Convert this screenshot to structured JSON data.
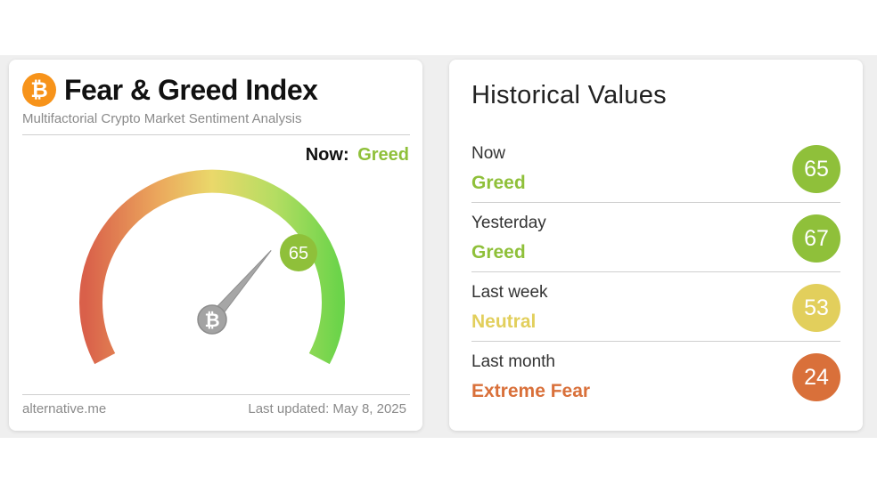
{
  "fg_card": {
    "logo_glyph": "₿",
    "title": "Fear & Greed Index",
    "subtitle": "Multifactorial Crypto Market Sentiment Analysis",
    "now_label": "Now:",
    "now_value": "Greed",
    "gauge_value": "65",
    "gauge_value_num": 65,
    "gauge_max": 100,
    "hub_glyph": "₿",
    "footer_left": "alternative.me",
    "footer_right": "Last updated: May 8, 2025"
  },
  "historical": {
    "title": "Historical Values",
    "rows": [
      {
        "period": "Now",
        "classification": "Greed",
        "value": "65",
        "color": "#8fc03a"
      },
      {
        "period": "Yesterday",
        "classification": "Greed",
        "value": "67",
        "color": "#8fc03a"
      },
      {
        "period": "Last week",
        "classification": "Neutral",
        "value": "53",
        "color": "#e2cf5c"
      },
      {
        "period": "Last month",
        "classification": "Extreme Fear",
        "value": "24",
        "color": "#d9703a"
      }
    ]
  },
  "colors": {
    "greed": "#8fc03a",
    "neutral": "#e2cf5c",
    "extreme_fear": "#d9703a",
    "bitcoin_orange": "#f7931a"
  }
}
